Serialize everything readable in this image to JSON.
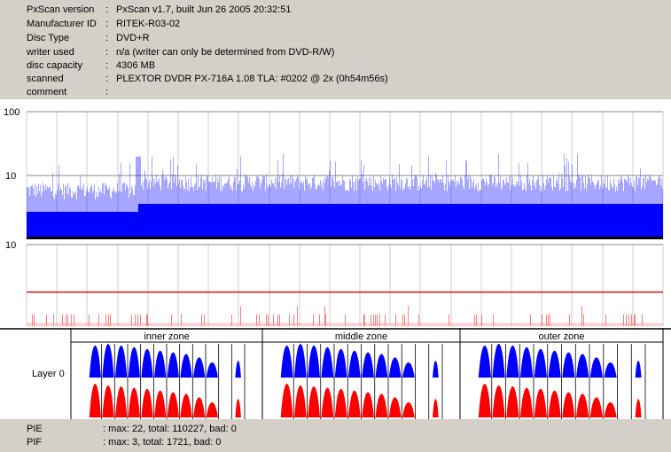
{
  "header": {
    "rows": [
      {
        "key": "PxScan version",
        "value": "PxScan v1.7, built Jun 26 2005 20:32:51"
      },
      {
        "key": "Manufacturer ID",
        "value": "RITEK-R03-02"
      },
      {
        "key": "Disc Type",
        "value": "DVD+R"
      },
      {
        "key": "writer used",
        "value": "n/a (writer can only be determined from DVD-R/W)"
      },
      {
        "key": "disc capacity",
        "value": "4306 MB"
      },
      {
        "key": "scanned",
        "value": "PLEXTOR DVDR PX-716A 1.08 TLA: #0202 @ 2x (0h54m56s)"
      },
      {
        "key": "comment",
        "value": ""
      }
    ],
    "separator": ":"
  },
  "footer": {
    "rows": [
      {
        "key": "PIE",
        "value": ": max: 22, total: 110227, bad: 0"
      },
      {
        "key": "PIF",
        "value": ": max: 3, total: 1721, bad: 0"
      }
    ]
  },
  "colors": {
    "pie": "#0000ff",
    "pif": "#ff0000",
    "pif_limit": "#cc0000",
    "grid": "#888888",
    "background": "#ffffff",
    "chrome": "#d4d0c8"
  },
  "chart_data": [
    {
      "type": "area",
      "title": "",
      "series": [
        {
          "name": "PIE",
          "max": 22,
          "total": 110227,
          "bad": 0
        }
      ],
      "yscale": "log",
      "ylim": [
        1,
        100
      ],
      "yticks": [
        "100",
        "10"
      ],
      "typical_level_start": 6,
      "typical_level_after_jump": 8,
      "jump_at_fraction": 0.175,
      "grid": true
    },
    {
      "type": "bar",
      "title": "",
      "series": [
        {
          "name": "PIF",
          "max": 3,
          "total": 1721,
          "bad": 0
        }
      ],
      "ylim": [
        0,
        10
      ],
      "yticks": [
        "10"
      ],
      "limit_line": 4,
      "grid": true
    },
    {
      "type": "bar",
      "title": "",
      "row_label": "Layer 0",
      "zones": [
        "inner zone",
        "middle zone",
        "outer zone"
      ],
      "pie_bump_heights": [
        0.95,
        1.0,
        0.95,
        0.9,
        0.85,
        0.8,
        0.75,
        0.7,
        0.6,
        0.45,
        0.0,
        0.5
      ],
      "pif_bump_heights": [
        1.0,
        0.95,
        0.92,
        0.88,
        0.85,
        0.8,
        0.75,
        0.7,
        0.6,
        0.45,
        0.0,
        0.55
      ],
      "grid": true
    }
  ]
}
